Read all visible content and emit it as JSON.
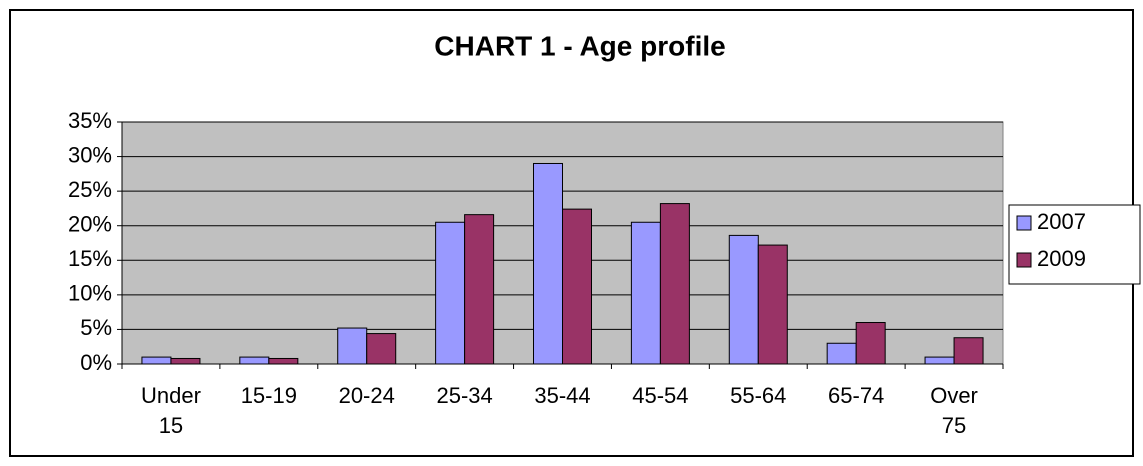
{
  "chart_data": {
    "type": "bar",
    "title": "CHART 1 - Age profile",
    "categories": [
      "Under 15",
      "15-19",
      "20-24",
      "25-34",
      "35-44",
      "45-54",
      "55-64",
      "65-74",
      "Over 75"
    ],
    "series": [
      {
        "name": "2007",
        "color": "#9999ff",
        "values": [
          1.0,
          1.0,
          5.2,
          20.5,
          29.0,
          20.5,
          18.6,
          3.0,
          1.0
        ]
      },
      {
        "name": "2009",
        "color": "#993366",
        "values": [
          0.8,
          0.8,
          4.4,
          21.6,
          22.4,
          23.2,
          17.2,
          6.0,
          3.8
        ]
      }
    ],
    "ylim": [
      0,
      35
    ],
    "yticks": [
      {
        "value": 0,
        "label": "0%"
      },
      {
        "value": 5,
        "label": "5%"
      },
      {
        "value": 10,
        "label": "10%"
      },
      {
        "value": 15,
        "label": "15%"
      },
      {
        "value": 20,
        "label": "20%"
      },
      {
        "value": 25,
        "label": "25%"
      },
      {
        "value": 30,
        "label": "30%"
      },
      {
        "value": 35,
        "label": "35%"
      }
    ],
    "grid": true,
    "legend": "right",
    "plot_background": "#c0c0c0"
  }
}
